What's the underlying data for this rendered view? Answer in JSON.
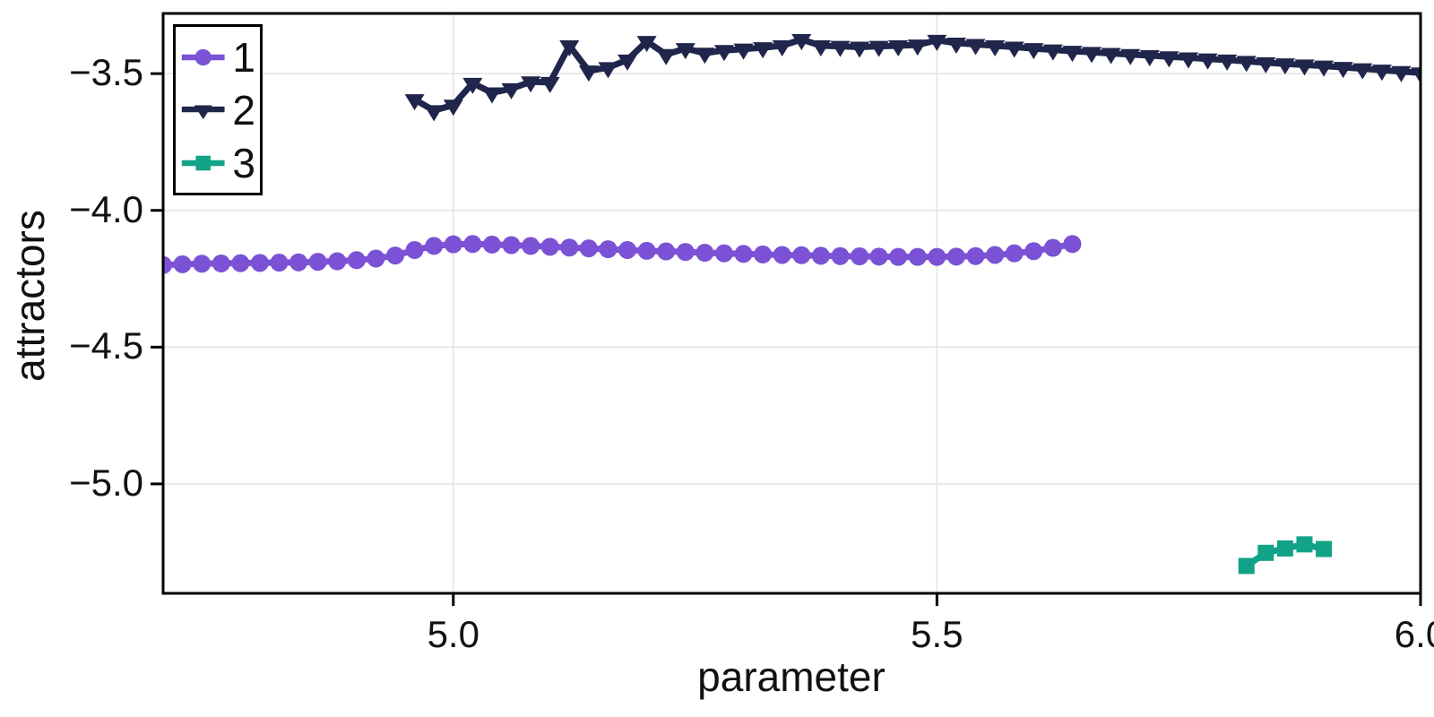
{
  "chart_data": {
    "type": "line",
    "title": "",
    "xlabel": "parameter",
    "ylabel": "attractors",
    "xlim": [
      4.7,
      6.0
    ],
    "ylim": [
      -5.4,
      -3.28
    ],
    "grid": true,
    "grid_color": "#E8E8E8",
    "frame_color": "#000000",
    "background_color": "#FFFFFF",
    "legend_position": "top-left",
    "xticks": [
      {
        "value": 5.0,
        "label": "5.0"
      },
      {
        "value": 5.5,
        "label": "5.5"
      },
      {
        "value": 6.0,
        "label": "6.0"
      }
    ],
    "yticks": [
      {
        "value": -3.5,
        "label": "−3.5"
      },
      {
        "value": -4.0,
        "label": "−4.0"
      },
      {
        "value": -4.5,
        "label": "−4.5"
      },
      {
        "value": -5.0,
        "label": "−5.0"
      }
    ],
    "series": [
      {
        "name": "1",
        "color": "#7B52D5",
        "marker": "circle",
        "x": [
          4.7,
          4.72,
          4.74,
          4.76,
          4.78,
          4.8,
          4.82,
          4.84,
          4.86,
          4.88,
          4.9,
          4.92,
          4.94,
          4.96,
          4.98,
          5.0,
          5.02,
          5.04,
          5.06,
          5.08,
          5.1,
          5.12,
          5.14,
          5.16,
          5.18,
          5.2,
          5.22,
          5.24,
          5.26,
          5.28,
          5.3,
          5.32,
          5.34,
          5.36,
          5.38,
          5.4,
          5.42,
          5.44,
          5.46,
          5.48,
          5.5,
          5.52,
          5.54,
          5.56,
          5.58,
          5.6,
          5.62,
          5.64
        ],
        "y": [
          -4.2,
          -4.197,
          -4.195,
          -4.194,
          -4.193,
          -4.192,
          -4.191,
          -4.19,
          -4.188,
          -4.186,
          -4.182,
          -4.176,
          -4.165,
          -4.145,
          -4.13,
          -4.124,
          -4.123,
          -4.125,
          -4.127,
          -4.13,
          -4.133,
          -4.136,
          -4.139,
          -4.142,
          -4.145,
          -4.148,
          -4.15,
          -4.152,
          -4.155,
          -4.157,
          -4.159,
          -4.161,
          -4.163,
          -4.164,
          -4.166,
          -4.167,
          -4.168,
          -4.169,
          -4.17,
          -4.17,
          -4.17,
          -4.169,
          -4.167,
          -4.163,
          -4.157,
          -4.149,
          -4.137,
          -4.123
        ]
      },
      {
        "name": "2",
        "color": "#20264B",
        "marker": "triangle-down",
        "x": [
          4.96,
          4.98,
          5.0,
          5.02,
          5.04,
          5.06,
          5.08,
          5.1,
          5.12,
          5.14,
          5.16,
          5.18,
          5.2,
          5.22,
          5.24,
          5.26,
          5.28,
          5.3,
          5.32,
          5.34,
          5.36,
          5.38,
          5.4,
          5.42,
          5.44,
          5.46,
          5.48,
          5.5,
          5.52,
          5.54,
          5.56,
          5.58,
          5.6,
          5.62,
          5.64,
          5.66,
          5.68,
          5.7,
          5.72,
          5.74,
          5.76,
          5.78,
          5.8,
          5.82,
          5.84,
          5.86,
          5.88,
          5.9,
          5.92,
          5.94,
          5.96,
          5.98,
          6.0
        ],
        "y": [
          -3.595,
          -3.635,
          -3.615,
          -3.535,
          -3.57,
          -3.555,
          -3.53,
          -3.532,
          -3.398,
          -3.49,
          -3.478,
          -3.45,
          -3.382,
          -3.43,
          -3.408,
          -3.425,
          -3.415,
          -3.41,
          -3.405,
          -3.398,
          -3.375,
          -3.398,
          -3.4,
          -3.403,
          -3.4,
          -3.398,
          -3.395,
          -3.378,
          -3.388,
          -3.393,
          -3.398,
          -3.403,
          -3.408,
          -3.413,
          -3.418,
          -3.422,
          -3.426,
          -3.43,
          -3.434,
          -3.438,
          -3.442,
          -3.446,
          -3.45,
          -3.455,
          -3.46,
          -3.464,
          -3.468,
          -3.472,
          -3.477,
          -3.482,
          -3.487,
          -3.492,
          -3.497
        ]
      },
      {
        "name": "3",
        "color": "#12A287",
        "marker": "square",
        "x": [
          5.82,
          5.84,
          5.86,
          5.88,
          5.9
        ],
        "y": [
          -5.3,
          -5.252,
          -5.236,
          -5.221,
          -5.238
        ]
      }
    ]
  }
}
